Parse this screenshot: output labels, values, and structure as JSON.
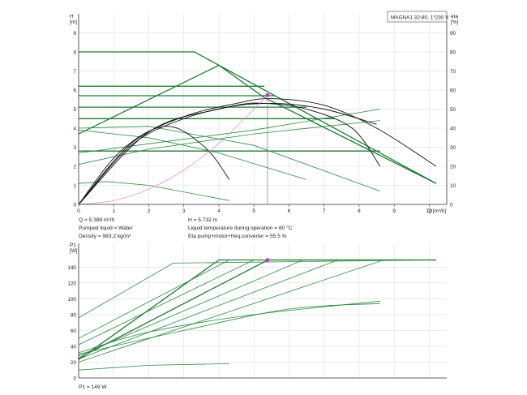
{
  "model_label": "MAGNA1 32-80, 1*230 V",
  "colors": {
    "accent": "#1f7a34",
    "curve_pale": "#2e8b44",
    "efficiency": "#111111",
    "system_curve": "#d58ad8",
    "duty_point": "#cc33cc",
    "duty_line": "#8a8a8a",
    "axis": "#333333",
    "grid": "#d9d9d9"
  },
  "info": {
    "left": [
      "Q = 5.388 m³/h",
      "Pumped liquid = Water",
      "Density = 983.2 kg/m³"
    ],
    "right": [
      "H = 5.732 m",
      "Liquid temperature during operation = 60 °C",
      "Eta pump+motor+freq.converter = 55.5 %"
    ],
    "bottom": "P1 = 149 W"
  },
  "chart_data": [
    {
      "type": "line",
      "title": "",
      "xlabel": "Q [m³/h]",
      "ylabel": "H\n[m]",
      "y2label": "eta\n[%]",
      "xlim": [
        0,
        10.5
      ],
      "ylim": [
        0,
        10
      ],
      "y2lim": [
        0,
        100
      ],
      "x_ticks": [
        "0",
        "1",
        "2",
        "3",
        "4",
        "5",
        "6",
        "7",
        "8",
        "9",
        "10"
      ],
      "y_ticks": [
        "0",
        "1",
        "2",
        "3",
        "4",
        "5",
        "6",
        "7",
        "8",
        "9"
      ],
      "y2_ticks": [
        "0",
        "10",
        "20",
        "30",
        "40",
        "50",
        "60",
        "70",
        "80",
        "90"
      ],
      "grid": true,
      "series": [
        {
          "role": "head",
          "style": "bold",
          "x": [
            0,
            3.3,
            10.2
          ],
          "y": [
            8.0,
            8.0,
            1.1
          ]
        },
        {
          "role": "head",
          "style": "bold",
          "x": [
            0,
            4.0,
            5.3,
            10.2
          ],
          "y": [
            3.7,
            7.3,
            5.6,
            1.1
          ]
        },
        {
          "role": "head",
          "style": "bold",
          "x": [
            0,
            5.3
          ],
          "y": [
            6.2,
            6.2
          ]
        },
        {
          "role": "head",
          "style": "bold",
          "x": [
            0,
            5.6
          ],
          "y": [
            5.7,
            5.7
          ]
        },
        {
          "role": "head",
          "style": "bold",
          "x": [
            0,
            6.5
          ],
          "y": [
            5.1,
            5.1
          ]
        },
        {
          "role": "head",
          "style": "bold",
          "x": [
            0,
            7.3
          ],
          "y": [
            4.5,
            4.5
          ]
        },
        {
          "role": "head",
          "style": "bold",
          "x": [
            0,
            8.6
          ],
          "y": [
            2.8,
            2.8
          ]
        },
        {
          "role": "head",
          "style": "thin",
          "x": [
            0,
            5.0,
            8.6
          ],
          "y": [
            2.7,
            3.9,
            5.0
          ]
        },
        {
          "role": "head",
          "style": "thin",
          "x": [
            0,
            2.0,
            5.0,
            8.6
          ],
          "y": [
            2.1,
            2.9,
            3.7,
            4.4
          ]
        },
        {
          "role": "head",
          "style": "thin",
          "x": [
            0,
            2.0,
            5.0,
            8.6
          ],
          "y": [
            4.0,
            4.1,
            3.1,
            0.7
          ]
        },
        {
          "role": "head",
          "style": "thin",
          "x": [
            0,
            2.0,
            4.0,
            6.5
          ],
          "y": [
            3.9,
            3.5,
            2.7,
            1.3
          ]
        },
        {
          "role": "head",
          "style": "thin",
          "x": [
            0,
            0.8,
            2.0,
            4.3
          ],
          "y": [
            1.1,
            1.2,
            1.0,
            0.2
          ]
        },
        {
          "role": "efficiency",
          "x": [
            0,
            1.5,
            3.0,
            4.5,
            5.5,
            7.0,
            8.5,
            10.2
          ],
          "y": [
            0,
            32,
            46,
            53,
            55.5,
            52,
            40,
            20
          ]
        },
        {
          "role": "efficiency",
          "x": [
            0,
            1.5,
            3.0,
            4.5,
            5.3,
            6.5,
            7.8,
            8.6
          ],
          "y": [
            0,
            31,
            45,
            52,
            53,
            50,
            40,
            20
          ]
        },
        {
          "role": "efficiency",
          "x": [
            0,
            1.2,
            2.5,
            3.6,
            4.3
          ],
          "y": [
            0,
            28,
            41,
            30,
            13
          ]
        },
        {
          "role": "efficiency",
          "x": [
            0,
            2.0,
            4.0,
            5.5,
            7.0,
            8.5
          ],
          "y": [
            0,
            38,
            50,
            53,
            50,
            42
          ]
        },
        {
          "role": "system",
          "x": [
            0,
            1.0,
            2.0,
            3.0,
            4.0,
            5.0,
            5.39
          ],
          "y": [
            0,
            0.2,
            0.8,
            1.8,
            3.2,
            5.0,
            5.73
          ]
        }
      ],
      "duty_point": {
        "x": 5.388,
        "y": 5.732
      }
    },
    {
      "type": "line",
      "title": "",
      "ylabel": "P1\n[W]",
      "xlim": [
        0,
        10.5
      ],
      "ylim": [
        0,
        170
      ],
      "y_ticks": [
        "0",
        "20",
        "40",
        "60",
        "80",
        "100",
        "120",
        "140"
      ],
      "grid": true,
      "series": [
        {
          "role": "power",
          "style": "bold",
          "x": [
            0,
            4.0,
            10.2
          ],
          "y": [
            23,
            149,
            149
          ]
        },
        {
          "role": "power",
          "style": "bold",
          "x": [
            0,
            5.4,
            10.2
          ],
          "y": [
            25,
            149,
            149
          ]
        },
        {
          "role": "power",
          "style": "thin",
          "x": [
            0,
            2.7,
            10.2
          ],
          "y": [
            76,
            145,
            149
          ]
        },
        {
          "role": "power",
          "style": "thin",
          "x": [
            0,
            4.3,
            10.2
          ],
          "y": [
            50,
            149,
            149
          ]
        },
        {
          "role": "power",
          "style": "thin",
          "x": [
            0,
            5.0,
            10.2
          ],
          "y": [
            42,
            149,
            149
          ]
        },
        {
          "role": "power",
          "style": "thin",
          "x": [
            0,
            6.4,
            10.2
          ],
          "y": [
            28,
            149,
            149
          ]
        },
        {
          "role": "power",
          "style": "thin",
          "x": [
            0,
            7.4,
            10.2
          ],
          "y": [
            24,
            149,
            149
          ]
        },
        {
          "role": "power",
          "style": "thin",
          "x": [
            0,
            8.7,
            10.2
          ],
          "y": [
            20,
            149,
            149
          ]
        },
        {
          "role": "power",
          "style": "thin",
          "x": [
            0,
            2.0,
            5.0,
            8.6
          ],
          "y": [
            32,
            58,
            80,
            97
          ]
        },
        {
          "role": "power",
          "style": "thin",
          "x": [
            0,
            3.0,
            6.0,
            8.6
          ],
          "y": [
            30,
            60,
            87,
            94
          ]
        },
        {
          "role": "power",
          "style": "thin",
          "x": [
            0,
            2.0,
            4.3
          ],
          "y": [
            10,
            16,
            18
          ]
        }
      ],
      "duty_point": {
        "x": 5.388,
        "y": 149
      }
    }
  ]
}
